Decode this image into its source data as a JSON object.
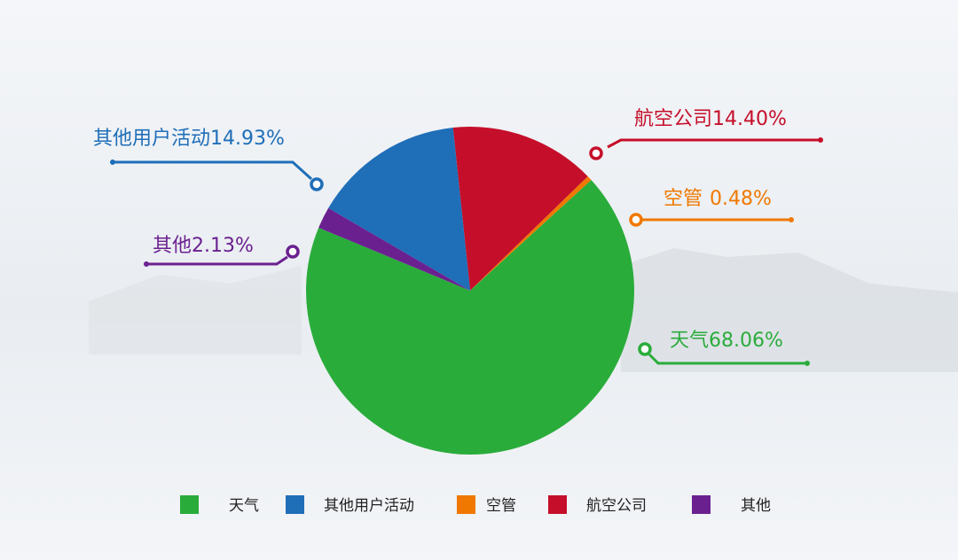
{
  "chart_data": {
    "type": "pie",
    "categories": [
      "天气",
      "其他用户活动",
      "空管",
      "航空公司",
      "其他"
    ],
    "values": [
      68.06,
      14.93,
      0.48,
      14.4,
      2.13
    ],
    "value_labels": [
      "68.06%",
      "14.93%",
      "0.48%",
      "14.40%",
      "2.13%"
    ],
    "colors": [
      "#2aac3b",
      "#1f6eb8",
      "#f07800",
      "#c50f2a",
      "#6b2090"
    ]
  }
}
